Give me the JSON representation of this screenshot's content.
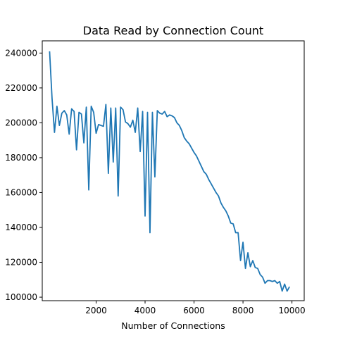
{
  "chart_data": {
    "type": "line",
    "title": "Data Read by Connection Count",
    "xlabel": "Number of Connections",
    "ylabel": "",
    "xlim": [
      -200,
      10500
    ],
    "ylim": [
      98000,
      247000
    ],
    "xticks": [
      2000,
      4000,
      6000,
      8000,
      10000
    ],
    "yticks": [
      100000,
      120000,
      140000,
      160000,
      180000,
      200000,
      220000,
      240000
    ],
    "grid": false,
    "legend": "none",
    "series": [
      {
        "color": "#1f77b4",
        "x": [
          100,
          200,
          300,
          400,
          500,
          600,
          700,
          800,
          900,
          1000,
          1100,
          1200,
          1300,
          1400,
          1500,
          1600,
          1700,
          1800,
          1900,
          2000,
          2100,
          2200,
          2300,
          2400,
          2500,
          2600,
          2700,
          2800,
          2900,
          3000,
          3100,
          3200,
          3300,
          3400,
          3500,
          3600,
          3700,
          3800,
          3900,
          4000,
          4100,
          4200,
          4300,
          4400,
          4500,
          4600,
          4700,
          4800,
          4900,
          5000,
          5100,
          5200,
          5300,
          5400,
          5500,
          5600,
          5700,
          5800,
          5900,
          6000,
          6100,
          6200,
          6300,
          6400,
          6500,
          6600,
          6700,
          6800,
          6900,
          7000,
          7100,
          7200,
          7300,
          7400,
          7500,
          7600,
          7700,
          7800,
          7900,
          8000,
          8100,
          8200,
          8300,
          8400,
          8500,
          8600,
          8700,
          8800,
          8900,
          9000,
          9100,
          9200,
          9300,
          9400,
          9500,
          9600,
          9700,
          9800,
          9900
        ],
        "y": [
          241000,
          214000,
          194500,
          209500,
          198500,
          205500,
          207000,
          204500,
          193500,
          208000,
          206500,
          184500,
          206000,
          205000,
          188500,
          209000,
          161500,
          209500,
          206000,
          194000,
          199000,
          198500,
          198000,
          210500,
          171000,
          208500,
          177500,
          208500,
          158000,
          209000,
          207500,
          200500,
          199500,
          197500,
          201500,
          194500,
          208500,
          183500,
          206500,
          146500,
          206000,
          137000,
          206000,
          169000,
          207000,
          205500,
          205000,
          206500,
          203500,
          204500,
          204000,
          203000,
          200000,
          198500,
          195500,
          191500,
          189500,
          188000,
          185500,
          183000,
          181000,
          178000,
          175000,
          172000,
          170500,
          167500,
          165000,
          162500,
          160000,
          158000,
          154000,
          151500,
          149500,
          146500,
          142500,
          142000,
          137000,
          137000,
          121000,
          131500,
          116500,
          125500,
          117500,
          121000,
          117000,
          116500,
          113000,
          111500,
          108000,
          109500,
          109500,
          109000,
          109500,
          108000,
          109000,
          103500,
          107500,
          103500,
          106000
        ]
      }
    ]
  }
}
